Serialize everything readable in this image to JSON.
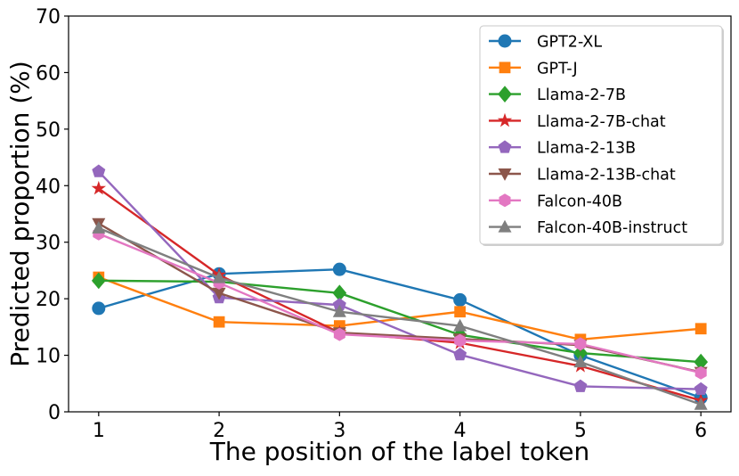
{
  "chart_data": {
    "type": "line",
    "title": "",
    "xlabel": "The position of the label token",
    "ylabel": "Predicted proportion (%)",
    "x": [
      1,
      2,
      3,
      4,
      5,
      6
    ],
    "xlim": [
      0.75,
      6.25
    ],
    "ylim": [
      0,
      70
    ],
    "xticks": [
      "1",
      "2",
      "3",
      "4",
      "5",
      "6"
    ],
    "yticks": [
      "0",
      "10",
      "20",
      "30",
      "40",
      "50",
      "60",
      "70"
    ],
    "grid": false,
    "legend_position": "upper-right",
    "series": [
      {
        "name": "GPT2-XL",
        "color": "#1f77b4",
        "marker": "circle",
        "values": [
          18.3,
          24.4,
          25.2,
          19.8,
          10.0,
          2.5
        ]
      },
      {
        "name": "GPT-J",
        "color": "#ff7f0e",
        "marker": "square",
        "values": [
          23.8,
          15.9,
          15.2,
          17.7,
          12.8,
          14.7
        ]
      },
      {
        "name": "Llama-2-7B",
        "color": "#2ca02c",
        "marker": "diamond",
        "values": [
          23.2,
          23.0,
          21.0,
          13.6,
          10.4,
          8.8
        ]
      },
      {
        "name": "Llama-2-7B-chat",
        "color": "#d62728",
        "marker": "star",
        "values": [
          39.5,
          24.2,
          14.0,
          12.2,
          8.1,
          2.0
        ]
      },
      {
        "name": "Llama-2-13B",
        "color": "#9467bd",
        "marker": "pentagon",
        "values": [
          42.5,
          20.2,
          18.9,
          10.1,
          4.5,
          4.0
        ]
      },
      {
        "name": "Llama-2-13B-chat",
        "color": "#8c564b",
        "marker": "triangle-down",
        "values": [
          33.3,
          21.0,
          14.0,
          12.9,
          11.8,
          7.0
        ]
      },
      {
        "name": "Falcon-40B",
        "color": "#e377c2",
        "marker": "hexagon",
        "values": [
          31.5,
          22.8,
          13.7,
          12.6,
          12.0,
          6.9
        ]
      },
      {
        "name": "Falcon-40B-instruct",
        "color": "#7f7f7f",
        "marker": "triangle-up",
        "values": [
          32.5,
          23.7,
          17.7,
          15.2,
          8.8,
          1.3
        ]
      }
    ]
  }
}
